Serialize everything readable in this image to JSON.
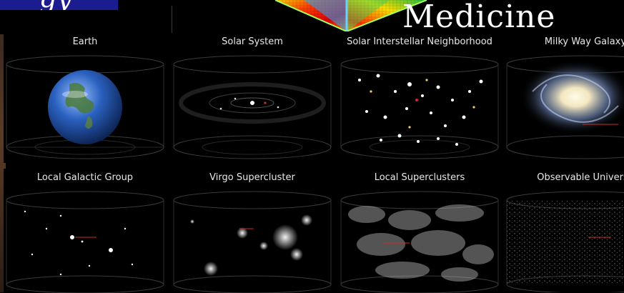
{
  "header": {
    "logo_fragment": "gy",
    "heading": "Medicine"
  },
  "panels": [
    {
      "title": "Earth"
    },
    {
      "title": "Solar System"
    },
    {
      "title": "Solar Interstellar Neighborhood"
    },
    {
      "title": "Milky Way Galaxy"
    },
    {
      "title": "Local Galactic Group"
    },
    {
      "title": "Virgo Supercluster"
    },
    {
      "title": "Local Superclusters"
    },
    {
      "title": "Observable Universe"
    }
  ],
  "colors": {
    "background": "#000000",
    "logo_box": "#1b1c8f",
    "title_text": "#e8e8e8",
    "highlight_label": "#d12a2a",
    "earth_ocean": "#1f4fa8"
  }
}
